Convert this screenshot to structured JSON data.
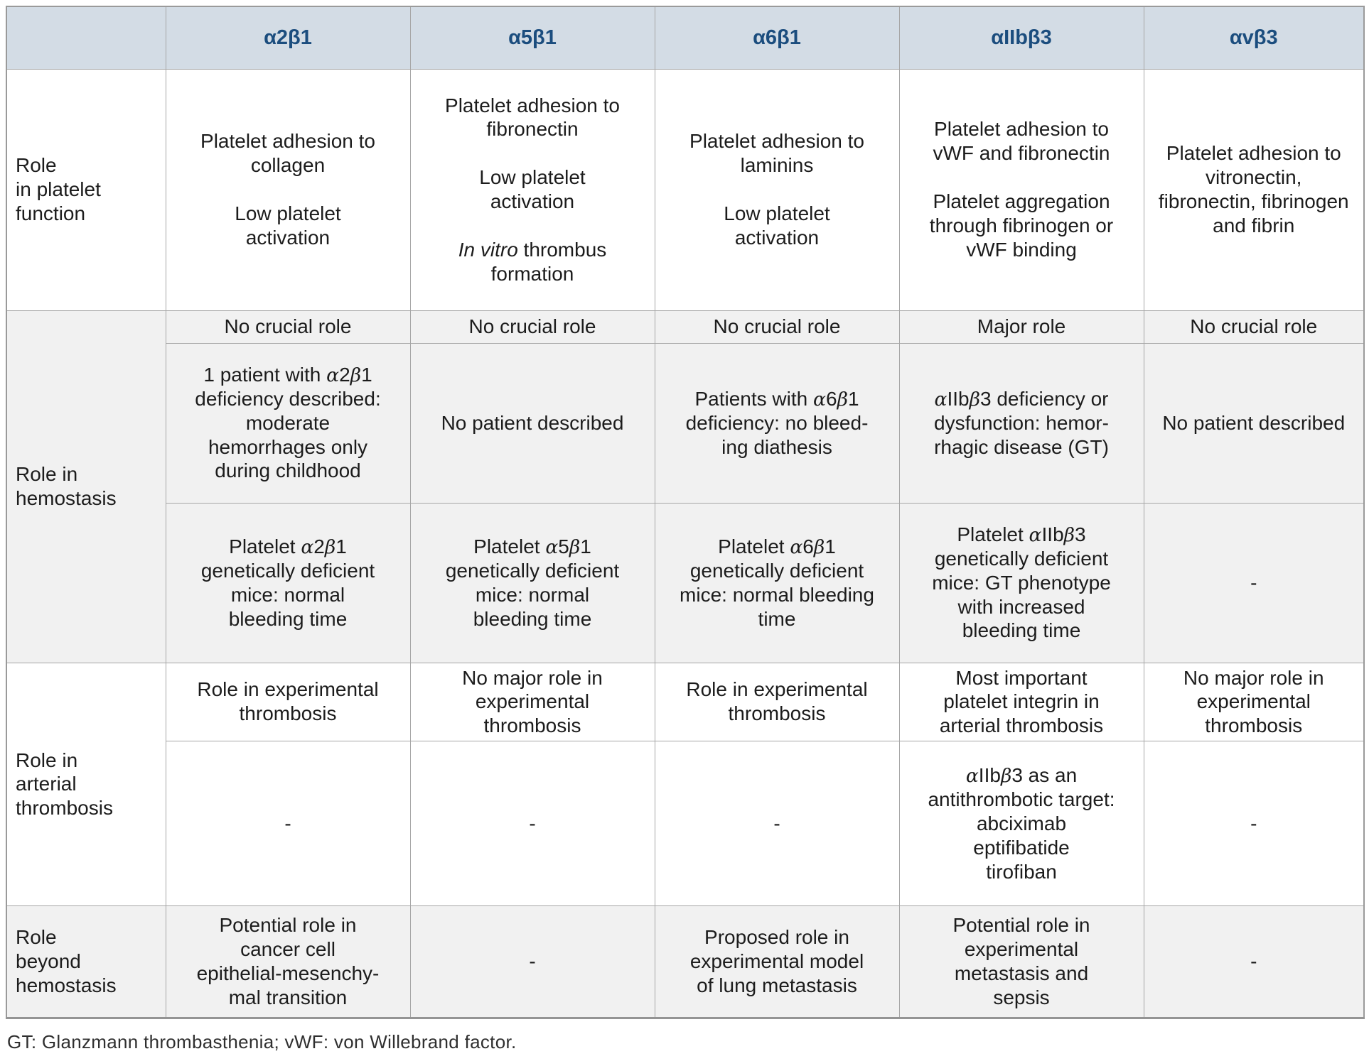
{
  "column_headers": [
    "",
    "α2β1",
    "α5β1",
    "α6β1",
    "αIIbβ3",
    "αvβ3"
  ],
  "sections": [
    {
      "label": "Role\nin platelet\nfunction",
      "rows": [
        {
          "cells": [
            "Platelet adhesion to\ncollagen\n\nLow platelet\nactivation",
            "Platelet adhesion to\nfibronectin\n\nLow platelet\nactivation\n\n<i>In vitro</i> thrombus\nformation",
            "Platelet adhesion to\nlaminins\n\nLow platelet\nactivation",
            "Platelet adhesion to\nvWF and fibronectin\n\nPlatelet aggregation\nthrough fibrinogen or\nvWF binding",
            "Platelet adhesion to\nvitronectin,\nfibronectin, fibrinogen\nand fibrin"
          ]
        }
      ]
    },
    {
      "label": "Role in\nhemostasis",
      "rows": [
        {
          "cells": [
            "No crucial role",
            "No crucial role",
            "No crucial role",
            "Major role",
            "No crucial role"
          ]
        },
        {
          "cells": [
            "1 patient with α2β1\ndeficiency described:\nmoderate\nhemorrhages only\nduring childhood",
            "No patient described",
            "Patients with α6β1\ndeficiency: no bleed-\ning diathesis",
            "αIIbβ3 deficiency or\ndysfunction: hemor-\nrhagic disease (GT)",
            "No patient described"
          ]
        },
        {
          "cells": [
            "Platelet α2β1\ngenetically deficient\nmice: normal\nbleeding time",
            "Platelet α5β1\ngenetically deficient\nmice: normal\nbleeding time",
            "Platelet α6β1\ngenetically deficient\nmice: normal bleeding\ntime",
            "Platelet αIIbβ3\ngenetically deficient\nmice: GT phenotype\nwith increased\nbleeding time",
            "-"
          ]
        }
      ]
    },
    {
      "label": "Role in\narterial\nthrombosis",
      "rows": [
        {
          "cells": [
            "Role in experimental\nthrombosis",
            "No major role in\nexperimental\nthrombosis",
            "Role in experimental\nthrombosis",
            "Most important\nplatelet integrin in\narterial thrombosis",
            "No major role in\nexperimental\nthrombosis"
          ]
        },
        {
          "cells": [
            "-",
            "-",
            "-",
            "αIIbβ3 as an\nantithrombotic target:\nabciximab\neptifibatide\ntirofiban",
            "-"
          ]
        }
      ]
    },
    {
      "label": "Role\nbeyond\nhemostasis",
      "rows": [
        {
          "cells": [
            "Potential role in\ncancer cell\nepithelial-mesenchy-\nmal transition",
            "-",
            "Proposed role in\nexperimental model\nof lung metastasis",
            "Potential role in\nexperimental\nmetastasis and\nsepsis",
            "-"
          ]
        }
      ]
    }
  ],
  "footnote": "GT: Glanzmann thrombasthenia; vWF: von Willebrand factor.",
  "colors": {
    "header_bg": "#d3dce5",
    "header_text": "#1b4d7e",
    "section_alt_bg": "#f1f1f1",
    "border": "#a6a6a6"
  }
}
